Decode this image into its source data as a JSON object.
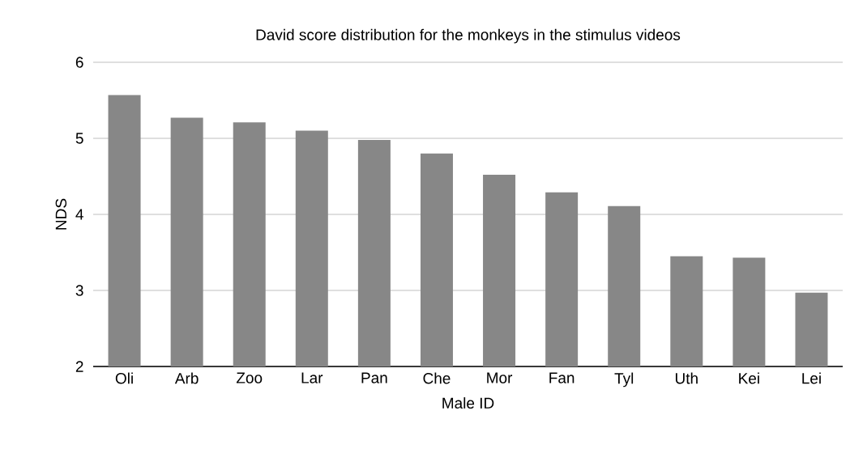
{
  "chart_data": {
    "type": "bar",
    "title": "David score distribution for the monkeys in the stimulus videos",
    "xlabel": "Male ID",
    "ylabel": "NDS",
    "categories": [
      "Oli",
      "Arb",
      "Zoo",
      "Lar",
      "Pan",
      "Che",
      "Mor",
      "Fan",
      "Tyl",
      "Uth",
      "Kei",
      "Lei"
    ],
    "values": [
      5.57,
      5.27,
      5.21,
      5.1,
      4.98,
      4.8,
      4.52,
      4.29,
      4.11,
      3.45,
      3.43,
      2.97
    ],
    "color": "#878787",
    "ylim": [
      2,
      6
    ],
    "yticks": [
      2,
      3,
      4,
      5,
      6
    ],
    "grid": "y"
  }
}
